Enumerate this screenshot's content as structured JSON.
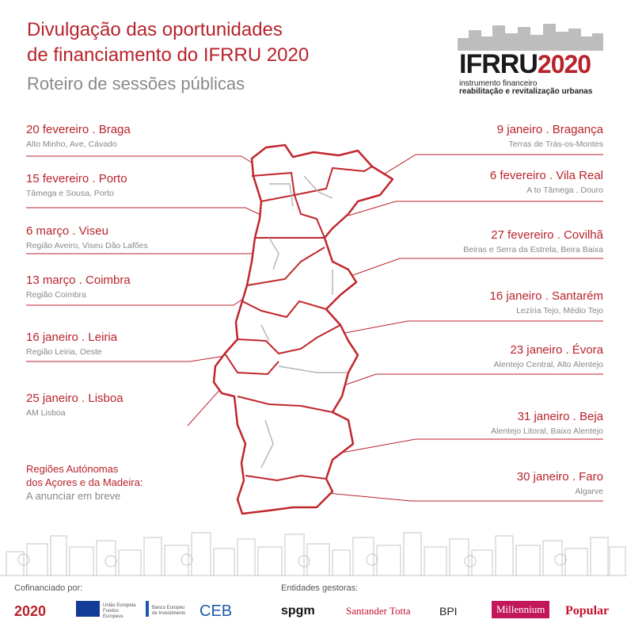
{
  "title_line1": "Divulgação das oportunidades",
  "title_line2": "de financiamento do IFRRU 2020",
  "subtitle": "Roteiro de sessões públicas",
  "logo": {
    "brand": "IFRRU",
    "year": "2020",
    "line1": "instrumento financeiro",
    "line2": "reabilitação e revitalização urbanas"
  },
  "sessions_left": [
    {
      "name": "20 fevereiro . Braga",
      "region": "Alto Minho, Ave, Cávado"
    },
    {
      "name": "15 fevereiro . Porto",
      "region": "Tâmega e Sousa, Porto"
    },
    {
      "name": "6 março . Viseu",
      "region": "Região Aveiro, Viseu Dão Lafões"
    },
    {
      "name": "13 março . Coimbra",
      "region": "Região Coimbra"
    },
    {
      "name": "16 janeiro . Leiria",
      "region": "Região Leiria, Oeste"
    },
    {
      "name": "25 janeiro . Lisboa",
      "region": "AM Lisboa"
    }
  ],
  "sessions_right": [
    {
      "name": "9 janeiro . Bragança",
      "region": "Terras de Trás-os-Montes"
    },
    {
      "name": "6 fevereiro . Vila Real",
      "region": "A to Tâmega , Douro"
    },
    {
      "name": "27 fevereiro . Covilhã",
      "region": "Beiras e Serra da Estrela, Beira Baixa"
    },
    {
      "name": "16 janeiro . Santarém",
      "region": "Lezíria Tejo, Médio Tejo"
    },
    {
      "name": "23 janeiro . Évora",
      "region": "Alentejo Central, Alto Alentejo"
    },
    {
      "name": "31 janeiro . Beja",
      "region": "Alentejo Litoral, Baixo Alentejo"
    },
    {
      "name": "30 janeiro . Faro",
      "region": "Algarve"
    }
  ],
  "autonomous": {
    "line1": "Regiões Autónomas",
    "line2": "dos Açores e da Madeira:",
    "line3": "A anunciar em breve"
  },
  "footer": {
    "cofinanced_label": "Cofinanciado por:",
    "managers_label": "Entidades gestoras:",
    "sponsors": {
      "portugal2020": "2020",
      "eu_text": "União Europeia Fundos Europeus",
      "bei_text": "Banco Europeu de Investimento",
      "ceb": "CEB",
      "spgm": "spgm",
      "santander": "Santander Totta",
      "bpi": "BPI",
      "millennium": "Millennium",
      "popular": "Popular"
    }
  },
  "colors": {
    "accent": "#b8232b",
    "grey": "#888888"
  }
}
